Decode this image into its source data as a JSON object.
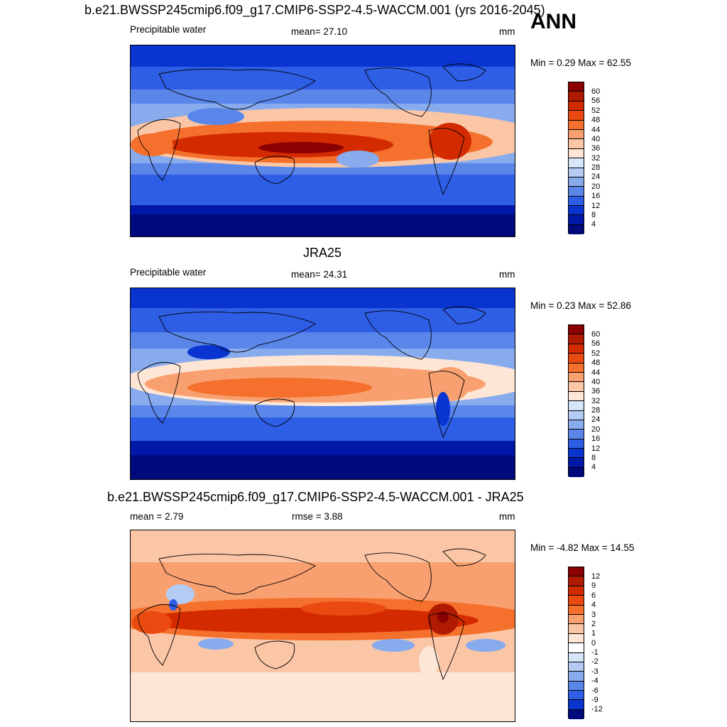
{
  "overall_label": "ANN",
  "panels": [
    {
      "title": "b.e21.BWSSP245cmip6.f09_g17.CMIP6-SSP2-4.5-WACCM.001 (yrs 2016-2045)",
      "left_label": "Precipitable water",
      "center_label": "mean=  27.10",
      "units": "mm",
      "minmax": "Min =   0.29 Max =  62.55",
      "colorbar_ticks": [
        "60",
        "56",
        "52",
        "48",
        "44",
        "40",
        "36",
        "32",
        "28",
        "24",
        "20",
        "16",
        "12",
        "8",
        "4"
      ]
    },
    {
      "title": "JRA25",
      "left_label": "Precipitable water",
      "center_label": "mean=  24.31",
      "units": "mm",
      "minmax": "Min =   0.23 Max =  52.86",
      "colorbar_ticks": [
        "60",
        "56",
        "52",
        "48",
        "44",
        "40",
        "36",
        "32",
        "28",
        "24",
        "20",
        "16",
        "12",
        "8",
        "4"
      ]
    },
    {
      "title": "b.e21.BWSSP245cmip6.f09_g17.CMIP6-SSP2-4.5-WACCM.001 - JRA25",
      "left_label": "mean =    2.79",
      "center_label": "rmse =    3.88",
      "units": "mm",
      "minmax": "Min =  -4.82 Max =  14.55",
      "colorbar_ticks": [
        "12",
        "9",
        "6",
        "4",
        "3",
        "2",
        "1",
        "0",
        "-1",
        "-2",
        "-3",
        "-4",
        "-6",
        "-9",
        "-12"
      ]
    }
  ],
  "colors": {
    "abs_scale": [
      "#8b0000",
      "#b01a00",
      "#d42a00",
      "#ea4a10",
      "#f4702c",
      "#f8a070",
      "#fbc6a6",
      "#fde6d6",
      "#d6e6fa",
      "#b4ccf4",
      "#88abee",
      "#5a86ea",
      "#2e5ee6",
      "#0a34d0",
      "#0018a8",
      "#000a7c"
    ],
    "diff_scale": [
      "#8b0000",
      "#b01a00",
      "#d42a00",
      "#ea4a10",
      "#f4702c",
      "#f8a070",
      "#fbc6a6",
      "#fde6d6",
      "#ffffff",
      "#d6e6fa",
      "#b4ccf4",
      "#88abee",
      "#5a86ea",
      "#2e5ee6",
      "#0a34d0",
      "#000a7c"
    ]
  }
}
